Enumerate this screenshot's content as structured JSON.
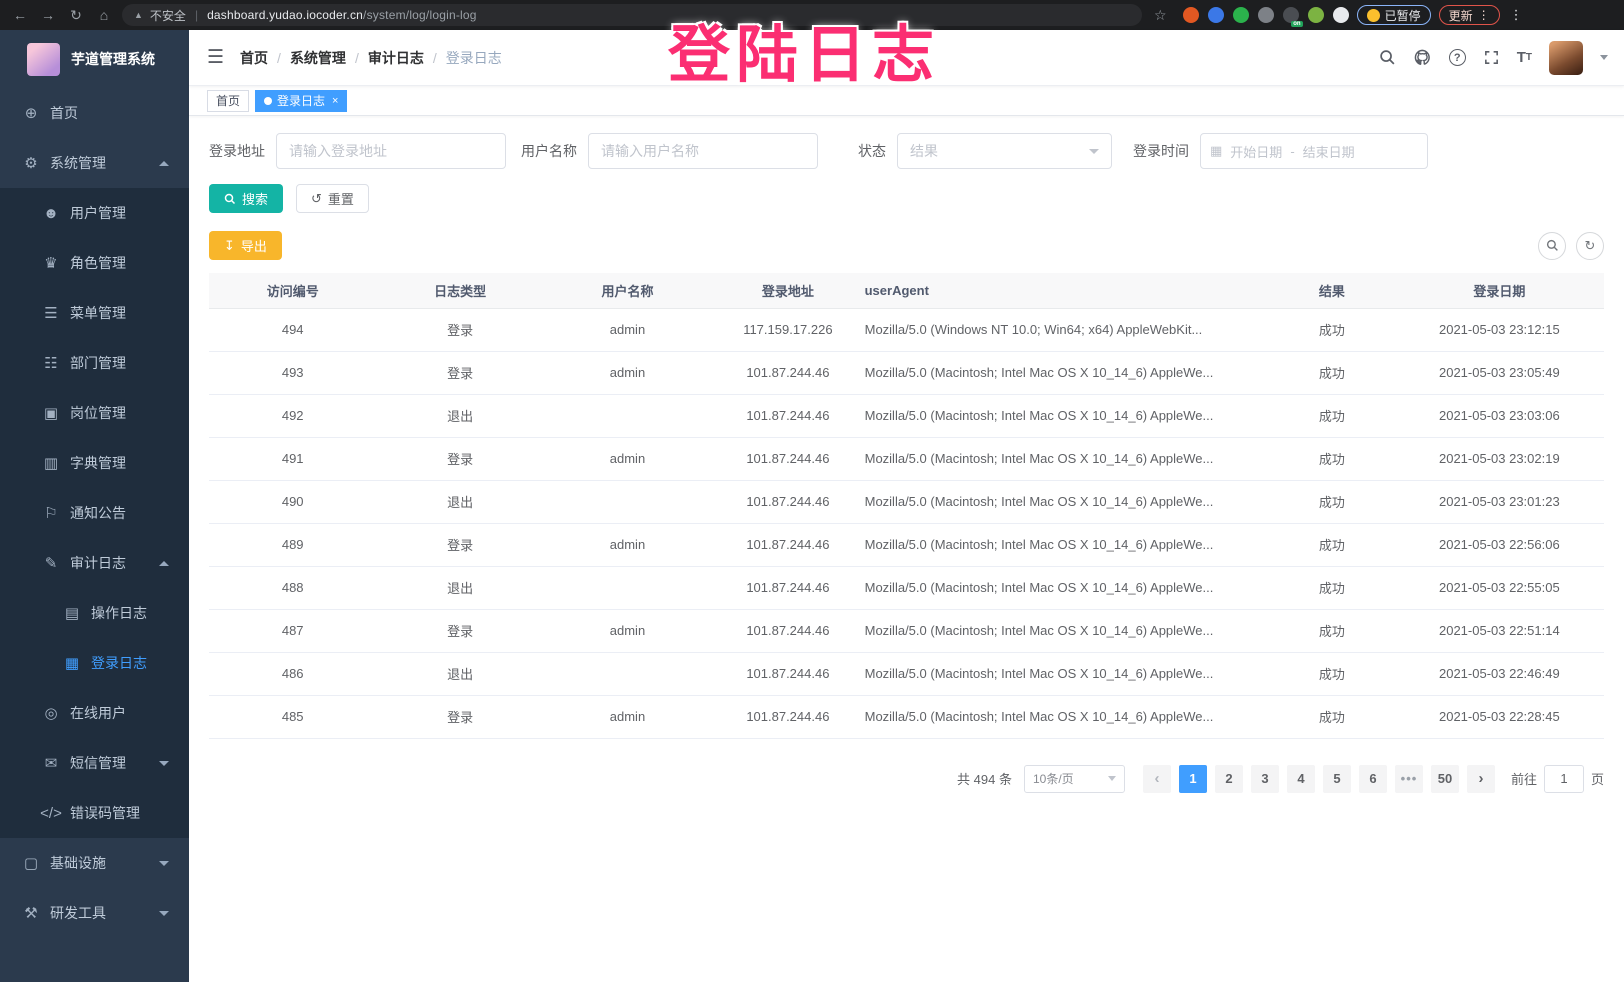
{
  "overlay": {
    "text": "登陆日志"
  },
  "colors": {
    "accent": "#409eff",
    "overlay_pink": "#fb2e72",
    "sidebar_bg": "#2b3a4d",
    "sidebar_submenu_bg": "#1f2d3d",
    "search_button": "#14b4a5",
    "export_button": "#f8b62b"
  },
  "browser": {
    "security_label": "不安全",
    "url_host": "dashboard.yudao.iocoder.cn",
    "url_path": "/system/log/login-log",
    "paused_badge": "已暂停",
    "update_button": "更新",
    "extensions": [
      {
        "name": "extension-orange-icon",
        "color": "#e25822"
      },
      {
        "name": "extension-blue-gem-icon",
        "color": "#3b78e7"
      },
      {
        "name": "extension-green-circle-icon",
        "color": "#2bb24c"
      },
      {
        "name": "extension-grid-blue-dot-icon",
        "color": "#7d8187"
      },
      {
        "name": "extension-list-on-icon",
        "color": "#4a4d52",
        "badge": "on"
      },
      {
        "name": "extension-leaf-icon",
        "color": "#7cb342"
      },
      {
        "name": "extension-puzzle-icon",
        "color": "#e8eaed"
      }
    ]
  },
  "sidebar": {
    "title": "芋道管理系统",
    "items": [
      {
        "id": "home",
        "icon": "dashboard-icon",
        "label": "首页",
        "level": 1
      },
      {
        "id": "system",
        "icon": "gear-icon",
        "label": "系统管理",
        "level": 1,
        "expand": "up"
      },
      {
        "id": "users",
        "icon": "user-icon",
        "label": "用户管理",
        "level": 2,
        "sub": true
      },
      {
        "id": "roles",
        "icon": "role-icon",
        "label": "角色管理",
        "level": 2,
        "sub": true
      },
      {
        "id": "menus",
        "icon": "menu-list-icon",
        "label": "菜单管理",
        "level": 2,
        "sub": true
      },
      {
        "id": "depts",
        "icon": "dept-tree-icon",
        "label": "部门管理",
        "level": 2,
        "sub": true
      },
      {
        "id": "posts",
        "icon": "post-badge-icon",
        "label": "岗位管理",
        "level": 2,
        "sub": true
      },
      {
        "id": "dicts",
        "icon": "dict-book-icon",
        "label": "字典管理",
        "level": 2,
        "sub": true
      },
      {
        "id": "notices",
        "icon": "notice-icon",
        "label": "通知公告",
        "level": 2,
        "sub": true
      },
      {
        "id": "audit-log",
        "icon": "audit-edit-icon",
        "label": "审计日志",
        "level": 2,
        "sub": true,
        "expand": "up"
      },
      {
        "id": "operate-log",
        "icon": "operate-log-icon",
        "label": "操作日志",
        "level": 3,
        "sub": true
      },
      {
        "id": "login-log",
        "icon": "login-log-icon",
        "label": "登录日志",
        "level": 3,
        "sub": true,
        "active": true
      },
      {
        "id": "online-users",
        "icon": "online-users-icon",
        "label": "在线用户",
        "level": 2,
        "sub": true
      },
      {
        "id": "sms",
        "icon": "sms-icon",
        "label": "短信管理",
        "level": 2,
        "sub": true,
        "expand": "down"
      },
      {
        "id": "error-code",
        "icon": "code-icon",
        "label": "错误码管理",
        "level": 2,
        "sub": true
      },
      {
        "id": "infra",
        "icon": "infra-icon",
        "label": "基础设施",
        "level": 1,
        "expand": "down"
      },
      {
        "id": "devtools",
        "icon": "tools-icon",
        "label": "研发工具",
        "level": 1,
        "expand": "down"
      }
    ]
  },
  "breadcrumb": {
    "separator": "/",
    "items": [
      "首页",
      "系统管理",
      "审计日志",
      "登录日志"
    ]
  },
  "tags": [
    {
      "label": "首页",
      "active": false
    },
    {
      "label": "登录日志",
      "active": true,
      "closable": true
    }
  ],
  "filters": {
    "login_address": {
      "label": "登录地址",
      "placeholder": "请输入登录地址"
    },
    "username": {
      "label": "用户名称",
      "placeholder": "请输入用户名称"
    },
    "status": {
      "label": "状态",
      "placeholder": "结果"
    },
    "login_time": {
      "label": "登录时间",
      "start_placeholder": "开始日期",
      "separator": "-",
      "end_placeholder": "结束日期"
    },
    "search_label": "搜索",
    "reset_label": "重置"
  },
  "toolbar": {
    "export_label": "导出"
  },
  "table": {
    "keys": [
      "id",
      "log_type",
      "username",
      "login_address",
      "user_agent",
      "result",
      "login_date"
    ],
    "headers": [
      "访问编号",
      "日志类型",
      "用户名称",
      "登录地址",
      "userAgent",
      "结果",
      "登录日期"
    ],
    "rows": [
      [
        "494",
        "登录",
        "admin",
        "117.159.17.226",
        "Mozilla/5.0 (Windows NT 10.0; Win64; x64) AppleWebKit...",
        "成功",
        "2021-05-03 23:12:15"
      ],
      [
        "493",
        "登录",
        "admin",
        "101.87.244.46",
        "Mozilla/5.0 (Macintosh; Intel Mac OS X 10_14_6) AppleWe...",
        "成功",
        "2021-05-03 23:05:49"
      ],
      [
        "492",
        "退出",
        "",
        "101.87.244.46",
        "Mozilla/5.0 (Macintosh; Intel Mac OS X 10_14_6) AppleWe...",
        "成功",
        "2021-05-03 23:03:06"
      ],
      [
        "491",
        "登录",
        "admin",
        "101.87.244.46",
        "Mozilla/5.0 (Macintosh; Intel Mac OS X 10_14_6) AppleWe...",
        "成功",
        "2021-05-03 23:02:19"
      ],
      [
        "490",
        "退出",
        "",
        "101.87.244.46",
        "Mozilla/5.0 (Macintosh; Intel Mac OS X 10_14_6) AppleWe...",
        "成功",
        "2021-05-03 23:01:23"
      ],
      [
        "489",
        "登录",
        "admin",
        "101.87.244.46",
        "Mozilla/5.0 (Macintosh; Intel Mac OS X 10_14_6) AppleWe...",
        "成功",
        "2021-05-03 22:56:06"
      ],
      [
        "488",
        "退出",
        "",
        "101.87.244.46",
        "Mozilla/5.0 (Macintosh; Intel Mac OS X 10_14_6) AppleWe...",
        "成功",
        "2021-05-03 22:55:05"
      ],
      [
        "487",
        "登录",
        "admin",
        "101.87.244.46",
        "Mozilla/5.0 (Macintosh; Intel Mac OS X 10_14_6) AppleWe...",
        "成功",
        "2021-05-03 22:51:14"
      ],
      [
        "486",
        "退出",
        "",
        "101.87.244.46",
        "Mozilla/5.0 (Macintosh; Intel Mac OS X 10_14_6) AppleWe...",
        "成功",
        "2021-05-03 22:46:49"
      ],
      [
        "485",
        "登录",
        "admin",
        "101.87.244.46",
        "Mozilla/5.0 (Macintosh; Intel Mac OS X 10_14_6) AppleWe...",
        "成功",
        "2021-05-03 22:28:45"
      ]
    ]
  },
  "pagination": {
    "total_text": "共 494 条",
    "page_size": "10条/页",
    "pages": [
      "1",
      "2",
      "3",
      "4",
      "5",
      "6",
      "...",
      "50"
    ],
    "active_page": "1",
    "goto_label": "前往",
    "goto_value": "1",
    "goto_suffix": "页"
  }
}
